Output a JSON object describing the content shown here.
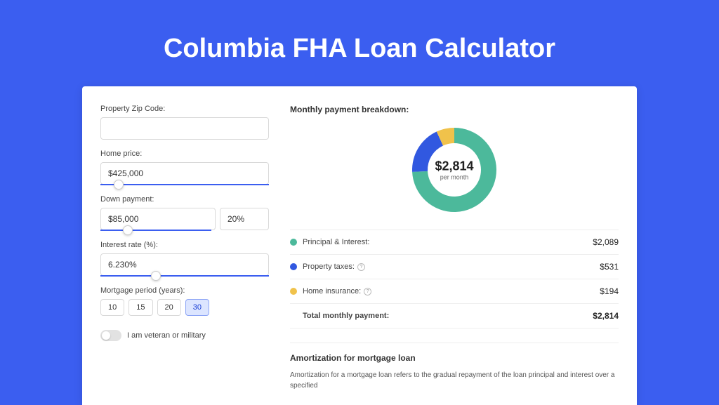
{
  "page": {
    "title": "Columbia FHA Loan Calculator",
    "background": "#3b5ef0"
  },
  "form": {
    "zip": {
      "label": "Property Zip Code:",
      "value": ""
    },
    "home_price": {
      "label": "Home price:",
      "value": "$425,000",
      "slider_pos_pct": 8
    },
    "down_payment": {
      "label": "Down payment:",
      "amount": "$85,000",
      "percent": "20%",
      "slider_pos_pct": 20
    },
    "interest_rate": {
      "label": "Interest rate (%):",
      "value": "6.230%",
      "slider_pos_pct": 30
    },
    "mortgage_period": {
      "label": "Mortgage period (years):",
      "options": [
        "10",
        "15",
        "20",
        "30"
      ],
      "active_index": 3
    },
    "veteran_toggle": {
      "label": "I am veteran or military",
      "on": false
    }
  },
  "breakdown": {
    "section_title": "Monthly payment breakdown:",
    "donut": {
      "center_value": "$2,814",
      "center_label": "per month",
      "slices": [
        {
          "color": "#4cb99b",
          "value": 2089
        },
        {
          "color": "#3158e0",
          "value": 531
        },
        {
          "color": "#f0c24b",
          "value": 194
        }
      ]
    },
    "items": [
      {
        "color": "#4cb99b",
        "label": "Principal & Interest:",
        "value": "$2,089",
        "info": false
      },
      {
        "color": "#3158e0",
        "label": "Property taxes:",
        "value": "$531",
        "info": true
      },
      {
        "color": "#f0c24b",
        "label": "Home insurance:",
        "value": "$194",
        "info": true
      }
    ],
    "total": {
      "label": "Total monthly payment:",
      "value": "$2,814"
    }
  },
  "amortization": {
    "title": "Amortization for mortgage loan",
    "text": "Amortization for a mortgage loan refers to the gradual repayment of the loan principal and interest over a specified"
  }
}
